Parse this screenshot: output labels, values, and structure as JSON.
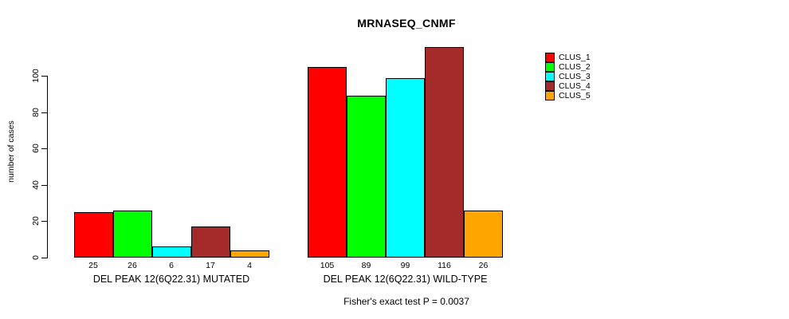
{
  "title": "MRNASEQ_CNMF",
  "footnote": "Fisher's exact test P = 0.0037",
  "y_axis": {
    "label": "number of cases"
  },
  "legend": [
    {
      "label": "CLUS_1",
      "color": "#FF0000"
    },
    {
      "label": "CLUS_2",
      "color": "#00FF00"
    },
    {
      "label": "CLUS_3",
      "color": "#00FFFF"
    },
    {
      "label": "CLUS_4",
      "color": "#A52A2A"
    },
    {
      "label": "CLUS_5",
      "color": "#FFA500"
    }
  ],
  "chart_data": {
    "type": "bar",
    "title": "MRNASEQ_CNMF",
    "xlabel": "",
    "ylabel": "number of cases",
    "ylim": [
      0,
      116
    ],
    "yticks": [
      0,
      20,
      40,
      60,
      80,
      100
    ],
    "grid": false,
    "legend_position": "right",
    "bar_value_labels": true,
    "categories": [
      "DEL PEAK 12(6Q22.31) MUTATED",
      "DEL PEAK 12(6Q22.31) WILD-TYPE"
    ],
    "series": [
      {
        "name": "CLUS_1",
        "color": "#FF0000",
        "values": [
          25,
          105
        ]
      },
      {
        "name": "CLUS_2",
        "color": "#00FF00",
        "values": [
          26,
          89
        ]
      },
      {
        "name": "CLUS_3",
        "color": "#00FFFF",
        "values": [
          6,
          99
        ]
      },
      {
        "name": "CLUS_4",
        "color": "#A52A2A",
        "values": [
          17,
          116
        ]
      },
      {
        "name": "CLUS_5",
        "color": "#FFA500",
        "values": [
          4,
          26
        ]
      }
    ],
    "annotation": "Fisher's exact test P = 0.0037"
  }
}
